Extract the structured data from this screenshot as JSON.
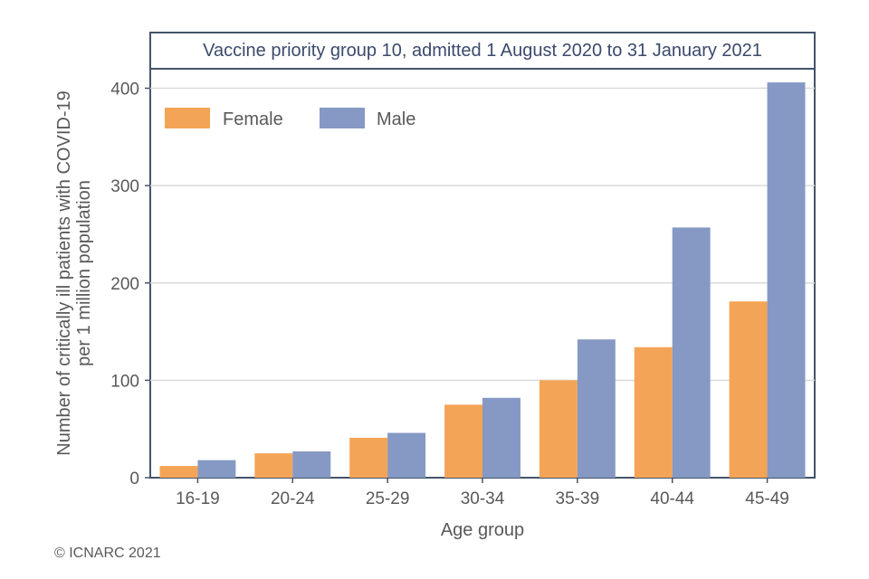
{
  "chart_data": {
    "type": "bar",
    "title": "Vaccine priority group  10, admitted 1 August 2020 to 31 January 2021",
    "xlabel": "Age group",
    "ylabel_lines": [
      "Number of critically ill patients with COVID-19",
      "per 1 million population"
    ],
    "categories": [
      "16-19",
      "20-24",
      "25-29",
      "30-34",
      "35-39",
      "40-44",
      "45-49"
    ],
    "series": [
      {
        "name": "Female",
        "color": "#f4a456",
        "values": [
          12,
          25,
          41,
          75,
          100,
          134,
          181
        ]
      },
      {
        "name": "Male",
        "color": "#8599c4",
        "values": [
          18,
          27,
          46,
          82,
          142,
          257,
          406
        ]
      }
    ],
    "ylim": [
      0,
      420
    ],
    "yticks": [
      0,
      100,
      200,
      300,
      400
    ],
    "grid": true,
    "legend_position": "top-left"
  },
  "footer": {
    "copyright": "© ICNARC 2021"
  }
}
